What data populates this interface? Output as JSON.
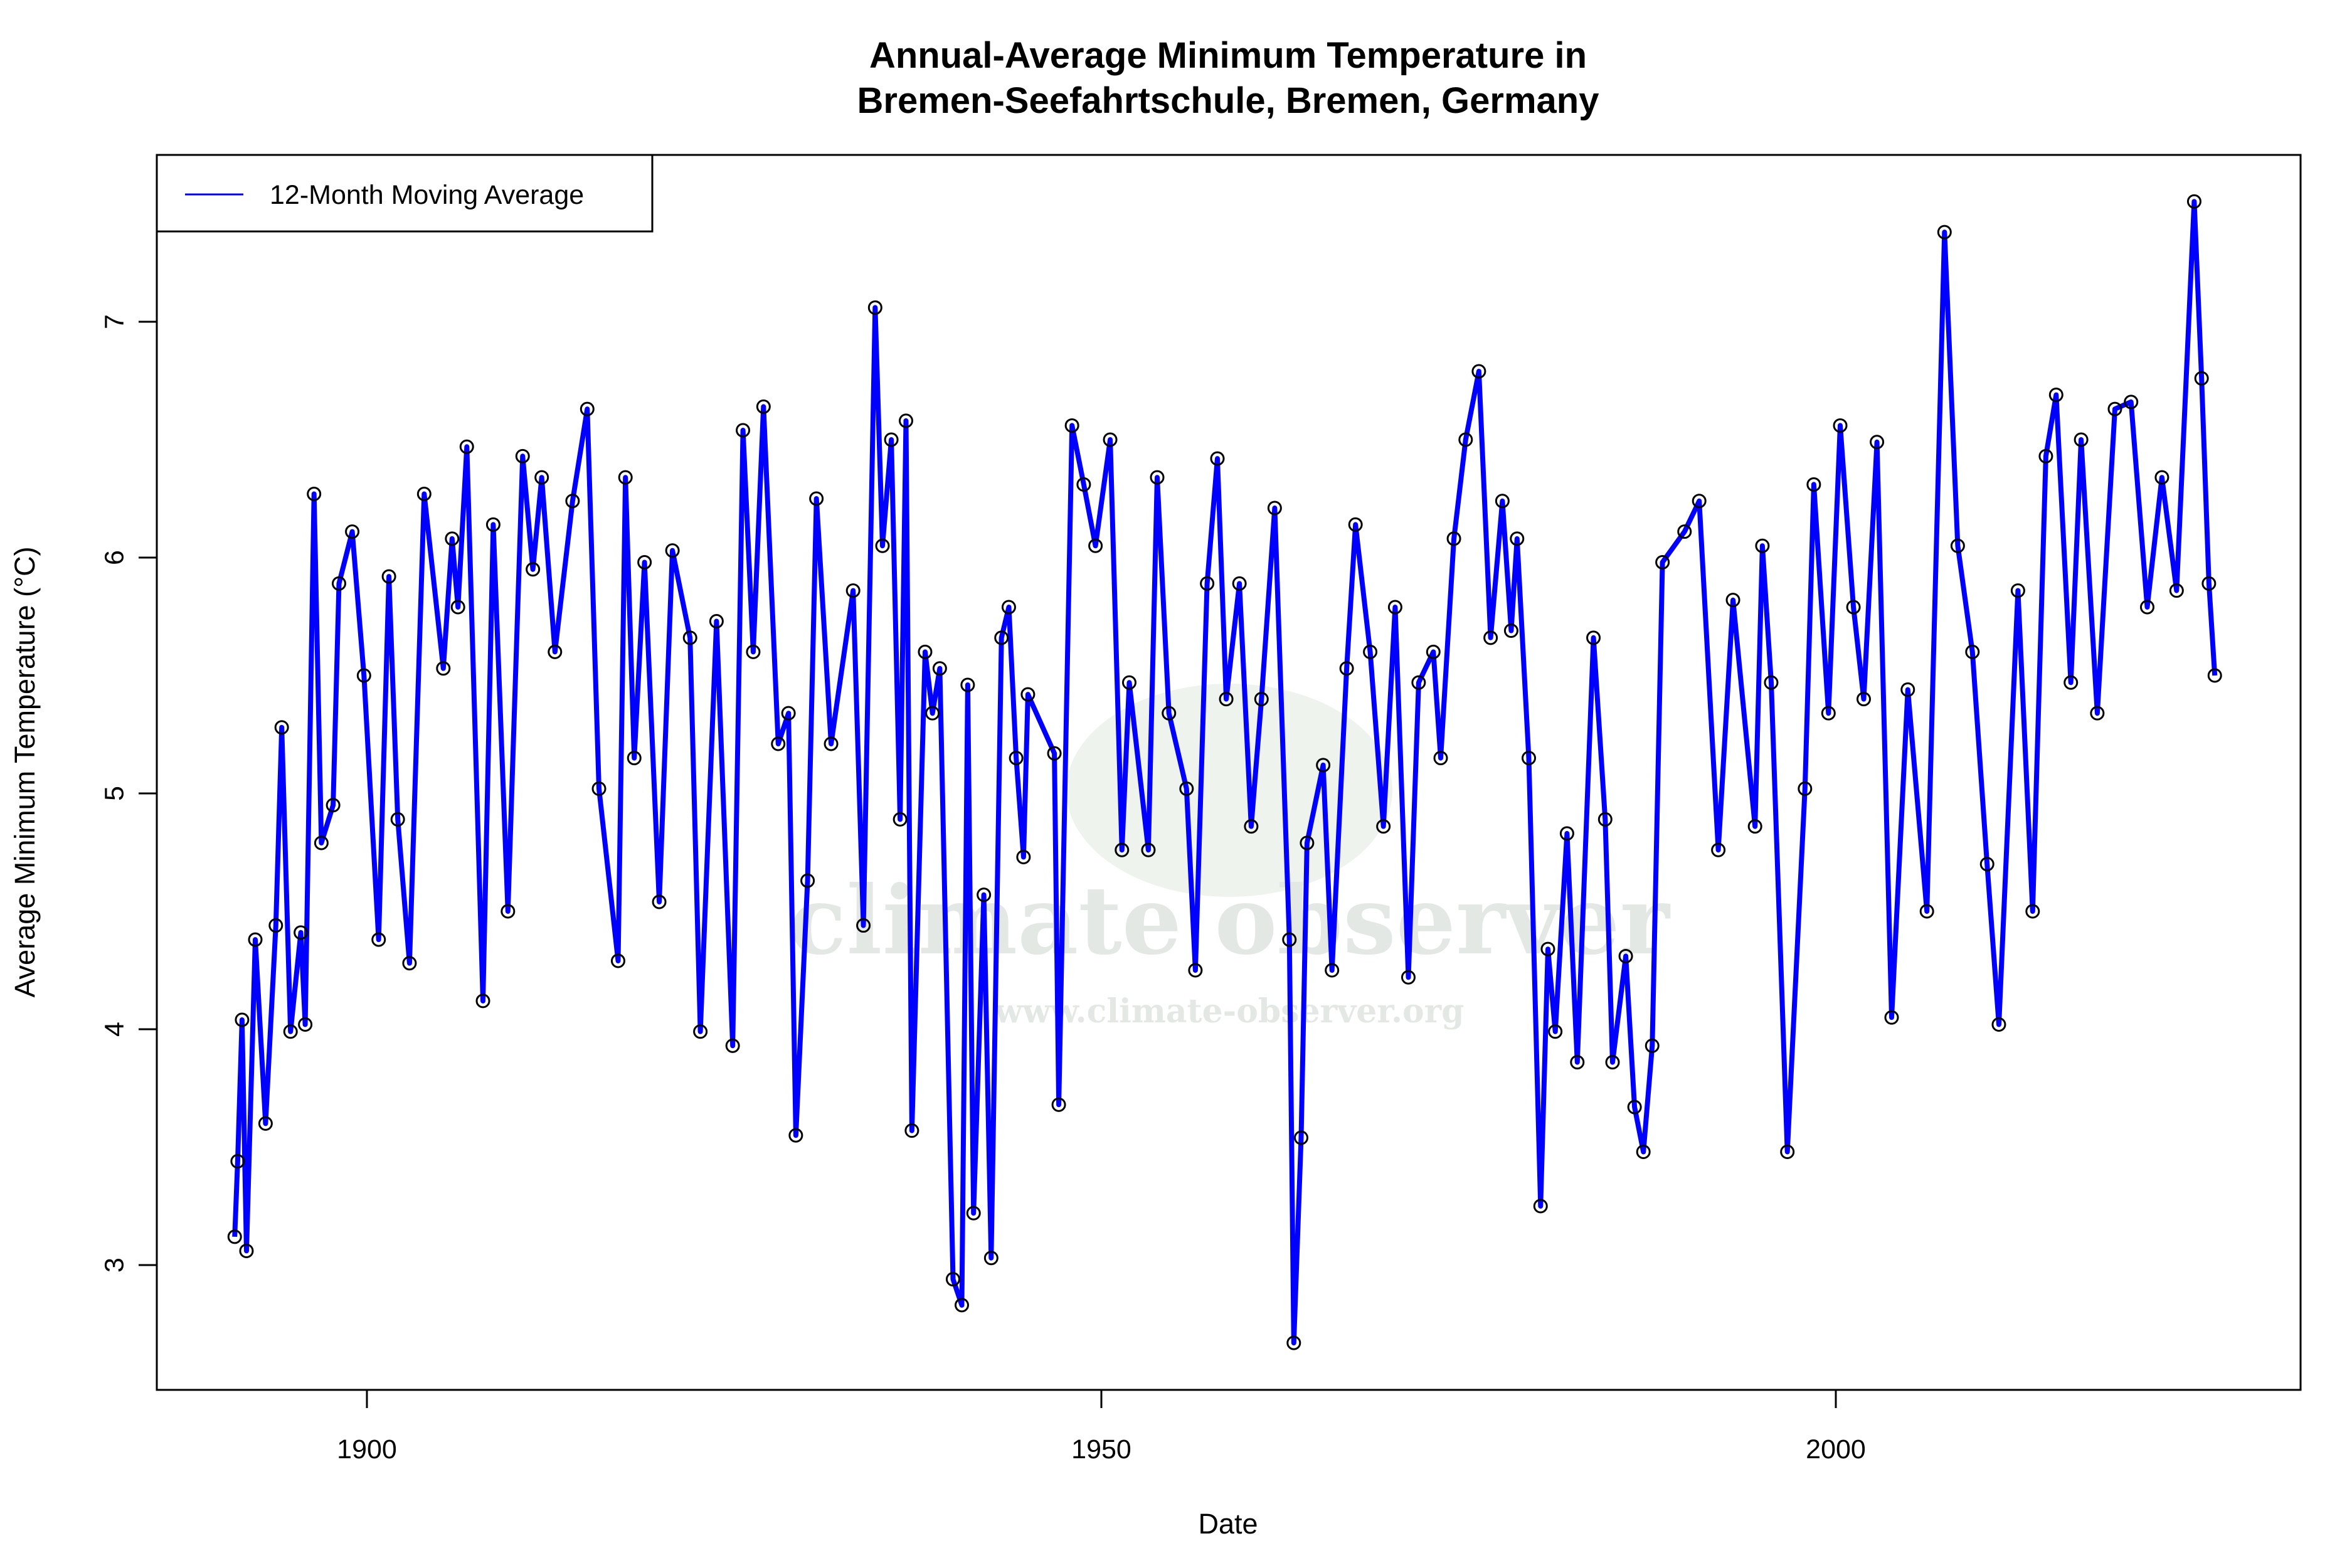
{
  "chart_data": {
    "type": "line",
    "title": "Annual-Average Minimum Temperature in\nBremen-Seefahrtschule, Bremen, Germany",
    "title_lines": [
      "Annual-Average Minimum Temperature in",
      "Bremen-Seefahrtschule, Bremen, Germany"
    ],
    "xlabel": "Date",
    "ylabel": "Average Minimum Temperature (°C)",
    "xlim": [
      1881,
      2029
    ],
    "ylim": [
      2.45,
      7.7
    ],
    "x_ticks": [
      1900,
      1950,
      2000
    ],
    "y_ticks": [
      3,
      4,
      5,
      6,
      7
    ],
    "grid": false,
    "legend": {
      "position": "top-left",
      "entries": [
        "12-Month Moving Average"
      ]
    },
    "watermark": [
      "climate observer",
      "www.climate-observer.org"
    ],
    "series": [
      {
        "name": "12-Month Moving Average",
        "color": "#0000ff",
        "marker_color": "#000000",
        "x": [
          1891.0,
          1891.2,
          1891.5,
          1891.8,
          1892.4,
          1893.1,
          1893.8,
          1894.2,
          1894.8,
          1895.5,
          1895.8,
          1896.4,
          1896.9,
          1897.7,
          1898.1,
          1899.0,
          1899.8,
          1900.8,
          1901.5,
          1902.1,
          1902.9,
          1903.9,
          1905.2,
          1905.8,
          1906.2,
          1906.8,
          1907.9,
          1908.6,
          1909.6,
          1910.6,
          1911.3,
          1911.9,
          1912.8,
          1914.0,
          1915.0,
          1915.8,
          1917.1,
          1917.6,
          1918.2,
          1918.9,
          1919.9,
          1920.8,
          1922.0,
          1922.7,
          1923.8,
          1924.9,
          1925.6,
          1926.3,
          1927.0,
          1928.0,
          1928.7,
          1929.2,
          1930.0,
          1930.6,
          1931.6,
          1933.1,
          1933.8,
          1934.6,
          1935.1,
          1935.7,
          1936.3,
          1936.7,
          1937.1,
          1938.0,
          1938.5,
          1939.0,
          1939.9,
          1940.5,
          1940.9,
          1941.3,
          1942.0,
          1942.5,
          1943.2,
          1943.7,
          1944.2,
          1944.7,
          1945.0,
          1946.8,
          1947.1,
          1948.0,
          1948.8,
          1949.6,
          1950.6,
          1951.4,
          1951.9,
          1953.2,
          1953.8,
          1954.6,
          1955.8,
          1956.4,
          1957.2,
          1957.9,
          1958.5,
          1959.4,
          1960.2,
          1960.9,
          1961.8,
          1962.8,
          1963.1,
          1963.6,
          1964.0,
          1965.1,
          1965.7,
          1966.7,
          1967.3,
          1968.3,
          1969.2,
          1970.0,
          1970.9,
          1971.6,
          1972.6,
          1973.1,
          1974.0,
          1974.8,
          1975.7,
          1976.5,
          1977.3,
          1977.9,
          1978.3,
          1979.1,
          1979.9,
          1980.4,
          1980.9,
          1981.7,
          1982.4,
          1983.5,
          1984.3,
          1984.8,
          1985.7,
          1986.3,
          1986.9,
          1987.5,
          1988.2,
          1989.7,
          1990.7,
          1992.0,
          1993.0,
          1994.5,
          1995.0,
          1995.6,
          1996.7,
          1997.9,
          1998.5,
          1999.5,
          2000.3,
          2001.2,
          2001.9,
          2002.8,
          2003.8,
          2004.9,
          2006.2,
          2007.4,
          2008.3,
          2009.3,
          2010.3,
          2011.1,
          2012.4,
          2013.4,
          2014.3,
          2015.0,
          2016.0,
          2016.7,
          2017.8,
          2019.0,
          2020.1,
          2021.2,
          2022.2,
          2023.2,
          2024.4,
          2024.9,
          2025.4,
          2025.8
        ],
        "y": [
          3.12,
          3.44,
          4.04,
          3.06,
          4.38,
          3.6,
          4.44,
          5.28,
          3.99,
          4.41,
          4.02,
          6.27,
          4.79,
          4.95,
          5.89,
          6.11,
          5.5,
          4.38,
          5.92,
          4.89,
          4.28,
          6.27,
          5.53,
          6.08,
          5.79,
          6.47,
          4.12,
          6.14,
          4.5,
          6.43,
          5.95,
          6.34,
          5.6,
          6.24,
          6.63,
          5.02,
          4.29,
          6.34,
          5.15,
          5.98,
          4.54,
          6.03,
          5.66,
          3.99,
          5.73,
          3.93,
          6.54,
          5.6,
          6.64,
          5.21,
          5.34,
          3.55,
          4.63,
          6.25,
          5.21,
          5.86,
          4.44,
          7.06,
          6.05,
          6.5,
          4.89,
          6.58,
          3.57,
          5.6,
          5.34,
          5.53,
          2.94,
          2.83,
          5.46,
          3.22,
          4.57,
          3.03,
          5.66,
          5.79,
          5.15,
          4.73,
          5.42,
          5.17,
          3.68,
          6.56,
          6.31,
          6.05,
          6.5,
          4.76,
          5.47,
          4.76,
          6.34,
          5.34,
          5.02,
          4.25,
          5.89,
          6.42,
          5.4,
          5.89,
          4.86,
          5.4,
          6.21,
          4.38,
          2.67,
          3.54,
          4.79,
          5.12,
          4.25,
          5.53,
          6.14,
          5.6,
          4.86,
          5.79,
          4.22,
          5.47,
          5.6,
          5.15,
          6.08,
          6.5,
          6.79,
          5.66,
          6.24,
          5.69,
          6.08,
          5.15,
          3.25,
          4.34,
          3.99,
          4.83,
          3.86,
          5.66,
          4.89,
          3.86,
          4.31,
          3.67,
          3.48,
          3.93,
          5.98,
          6.11,
          6.24,
          4.76,
          5.82,
          4.86,
          6.05,
          5.47,
          3.48,
          5.02,
          6.31,
          5.34,
          6.56,
          5.79,
          5.4,
          6.49,
          4.05,
          5.44,
          4.5,
          7.38,
          6.05,
          5.6,
          4.7,
          4.02,
          5.86,
          4.5,
          6.43,
          6.69,
          5.47,
          6.5,
          5.34,
          6.63,
          6.66,
          5.79,
          6.34,
          5.86,
          7.51,
          6.76,
          5.89,
          5.5
        ]
      }
    ]
  }
}
